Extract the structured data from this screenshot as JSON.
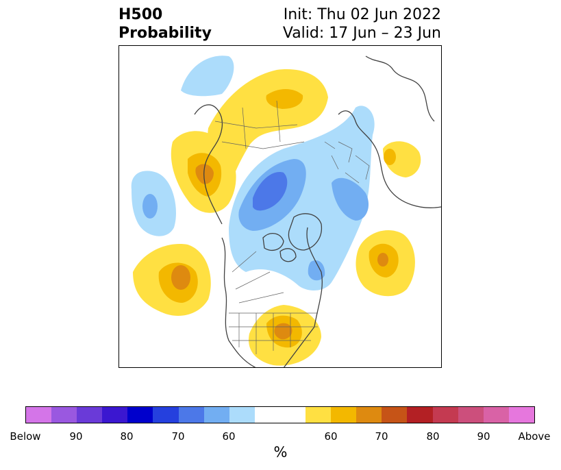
{
  "header": {
    "title_line1": "H500",
    "title_line2": "Probability",
    "init": "Init: Thu 02 Jun 2022",
    "valid": "Valid: 17 Jun – 23 Jun"
  },
  "colorbar": {
    "units": "%",
    "segments": [
      {
        "color": "#d475e8"
      },
      {
        "color": "#9a58e0"
      },
      {
        "color": "#6a3ad8"
      },
      {
        "color": "#3b17d0"
      },
      {
        "color": "#0000cc"
      },
      {
        "color": "#2540de"
      },
      {
        "color": "#4c78e8"
      },
      {
        "color": "#72aef2"
      },
      {
        "color": "#acdcfb"
      },
      {
        "color": "#ffffff"
      },
      {
        "color": "#ffffff"
      },
      {
        "color": "#ffe042"
      },
      {
        "color": "#f3b800"
      },
      {
        "color": "#de8a10"
      },
      {
        "color": "#c65417"
      },
      {
        "color": "#b32024"
      },
      {
        "color": "#c43a51"
      },
      {
        "color": "#cc4f7c"
      },
      {
        "color": "#d962a6"
      },
      {
        "color": "#e677dd"
      }
    ],
    "labels": [
      "Below",
      "90",
      "80",
      "70",
      "60",
      "60",
      "70",
      "80",
      "90",
      "Above"
    ]
  },
  "legend_colors": {
    "below_light": "#acdcfb",
    "below_mid": "#72aef2",
    "below_strong": "#4c78e8",
    "above_light": "#ffe042",
    "above_mid": "#f3b800",
    "above_strong": "#de8a10"
  }
}
